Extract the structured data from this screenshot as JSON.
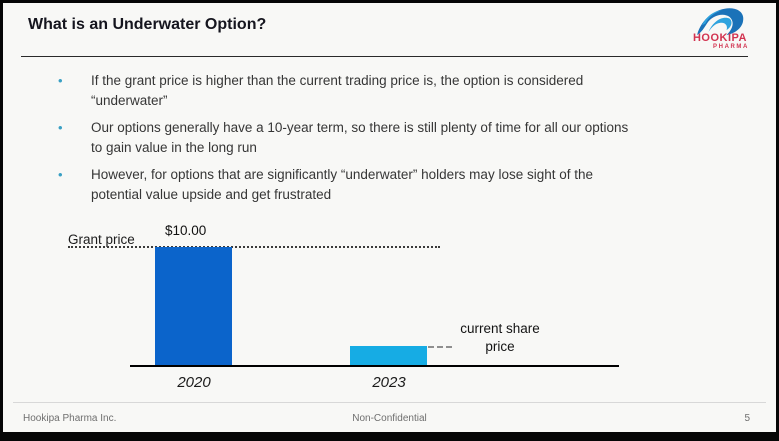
{
  "slide": {
    "title": "What is an Underwater Option?",
    "footer": {
      "left": "Hookipa Pharma Inc.",
      "center": "Non-Confidential",
      "page_number": "5"
    }
  },
  "logo": {
    "name": "HOOKIPA",
    "subname": "PHARMA",
    "brand_red": "#d23350",
    "wave_dark_blue": "#1b72b8",
    "wave_light_blue": "#2fa3de"
  },
  "bullets": [
    {
      "text": "If the grant price is higher than the current trading price is, the option is considered\n“underwater”"
    },
    {
      "text": "Our options generally have a 10-year term, so there is still plenty of time for all our options\nto gain value in the long run"
    },
    {
      "text": "However, for options that are significantly “underwater” holders may lose sight of the\npotential value upside and get frustrated"
    }
  ],
  "chart_data": {
    "type": "bar",
    "categories": [
      "2020",
      "2023"
    ],
    "values": [
      10.0,
      1.6
    ],
    "series": [
      {
        "name": "Grant price",
        "values": [
          10.0
        ]
      },
      {
        "name": "Current share price",
        "values": [
          1.6
        ]
      }
    ],
    "title": "",
    "xlabel": "",
    "ylabel": "",
    "ylim": [
      0,
      10.5
    ],
    "grid": false,
    "legend": false,
    "bar_colors": [
      "#0b64cb",
      "#16ace4"
    ],
    "annotations": {
      "grant_price_label": "Grant price",
      "bar_2020_value_label": "$10.00",
      "current_share_price_label": "current share\nprice"
    }
  },
  "colors": {
    "background": "#f8f8f6",
    "bullet_accent": "#3aa0c4",
    "bar_2020": "#0b64cb",
    "bar_2023": "#16ace4",
    "axis": "#000000",
    "footer_text": "#6f6f6f"
  }
}
